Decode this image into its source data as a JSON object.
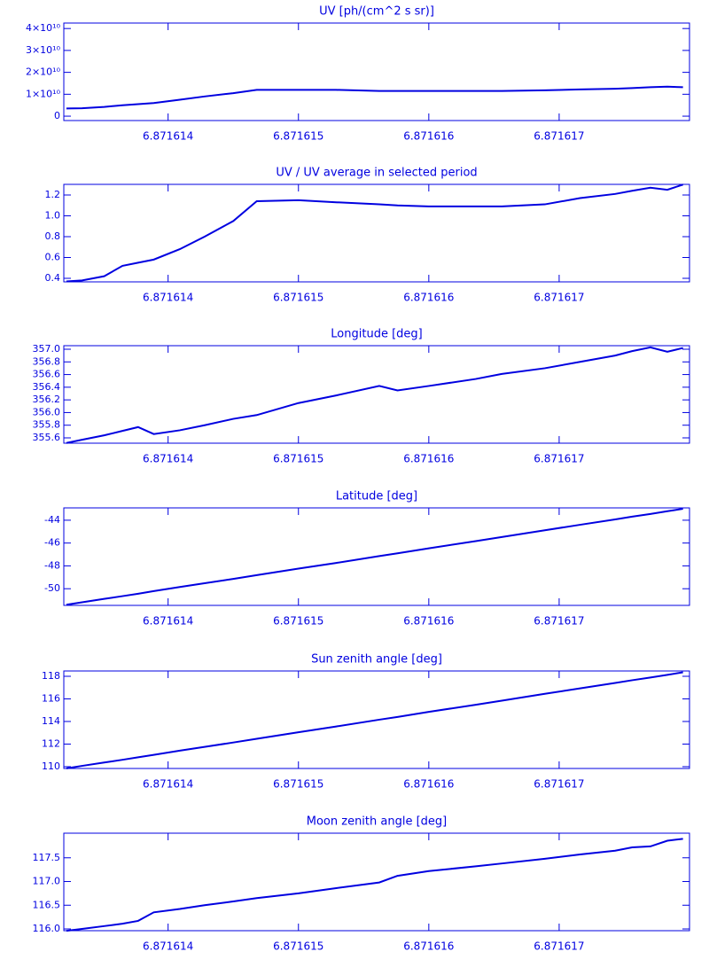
{
  "chart_data": [
    {
      "type": "line",
      "title": "UV [ph/(cm^2 s sr)]",
      "color": "#0000e0",
      "x": [
        6.87161322,
        6.87161334,
        6.87161351,
        6.87161365,
        6.87161377,
        6.87161389,
        6.87161409,
        6.87161428,
        6.8716145,
        6.87161468,
        6.871615,
        6.87161529,
        6.87161562,
        6.87161576,
        6.871616,
        6.87161636,
        6.87161656,
        6.87161689,
        6.87161716,
        6.87161743,
        6.87161756,
        6.8716177,
        6.87161783,
        6.87161795
      ],
      "values": [
        3500000000.0,
        3600000000.0,
        4200000000.0,
        5000000000.0,
        5500000000.0,
        6000000000.0,
        7500000000.0,
        9000000000.0,
        10500000000.0,
        12000000000.0,
        12000000000.0,
        12000000000.0,
        11500000000.0,
        11500000000.0,
        11500000000.0,
        11500000000.0,
        11500000000.0,
        11800000000.0,
        12200000000.0,
        12500000000.0,
        12800000000.0,
        13200000000.0,
        13500000000.0,
        13200000000.0
      ],
      "xlim": [
        6.8716132,
        6.871618
      ],
      "xticks": [
        6.871614,
        6.871615,
        6.871616,
        6.871617
      ],
      "ylim": [
        -2000000000.0,
        42500000000.0
      ],
      "yticks": [
        0,
        {
          "value": 10000000000.0,
          "label": "1×10¹⁰"
        },
        {
          "value": 20000000000.0,
          "label": "2×10¹⁰"
        },
        {
          "value": 30000000000.0,
          "label": "3×10¹⁰"
        },
        {
          "value": 40000000000.0,
          "label": "4×10¹⁰"
        }
      ]
    },
    {
      "type": "line",
      "title": "UV / UV average in selected period",
      "color": "#0000e0",
      "x": [
        6.87161322,
        6.87161334,
        6.87161351,
        6.87161365,
        6.87161377,
        6.87161389,
        6.87161409,
        6.87161428,
        6.8716145,
        6.87161468,
        6.871615,
        6.87161529,
        6.87161562,
        6.87161576,
        6.871616,
        6.87161636,
        6.87161656,
        6.87161689,
        6.87161716,
        6.87161743,
        6.87161756,
        6.8716177,
        6.87161783,
        6.87161795
      ],
      "values": [
        0.37,
        0.38,
        0.42,
        0.52,
        0.55,
        0.58,
        0.68,
        0.8,
        0.95,
        1.14,
        1.15,
        1.13,
        1.11,
        1.1,
        1.09,
        1.09,
        1.09,
        1.11,
        1.17,
        1.21,
        1.24,
        1.27,
        1.25,
        1.3
      ],
      "xlim": [
        6.8716132,
        6.871618
      ],
      "xticks": [
        6.871614,
        6.871615,
        6.871616,
        6.871617
      ],
      "ylim": [
        0.366,
        1.302
      ],
      "yticks": [
        0.4,
        0.6,
        0.8,
        {
          "value": 1.0,
          "label": "1.0"
        },
        1.2
      ]
    },
    {
      "type": "line",
      "title": "Longitude [deg]",
      "color": "#0000e0",
      "x": [
        6.87161322,
        6.87161334,
        6.87161351,
        6.87161365,
        6.87161377,
        6.87161389,
        6.87161409,
        6.87161428,
        6.8716145,
        6.87161468,
        6.871615,
        6.87161529,
        6.87161562,
        6.87161576,
        6.871616,
        6.87161636,
        6.87161656,
        6.87161689,
        6.87161716,
        6.87161743,
        6.87161756,
        6.8716177,
        6.87161783,
        6.87161795
      ],
      "values": [
        355.52,
        355.57,
        355.64,
        355.71,
        355.77,
        355.66,
        355.72,
        355.8,
        355.9,
        355.96,
        356.15,
        356.27,
        356.42,
        356.35,
        356.42,
        356.53,
        356.61,
        356.7,
        356.8,
        356.9,
        356.97,
        357.03,
        356.96,
        357.02
      ],
      "xlim": [
        6.8716132,
        6.871618
      ],
      "xticks": [
        6.871614,
        6.871615,
        6.871616,
        6.871617
      ],
      "ylim": [
        355.516,
        357.056
      ],
      "yticks": [
        355.6,
        355.8,
        {
          "value": 356.0,
          "label": "356.0"
        },
        356.2,
        356.4,
        356.6,
        356.8,
        {
          "value": 357.0,
          "label": "357.0"
        }
      ]
    },
    {
      "type": "line",
      "title": "Latitude [deg]",
      "color": "#0000e0",
      "x": [
        6.87161322,
        6.87161334,
        6.87161351,
        6.87161365,
        6.87161377,
        6.87161389,
        6.87161409,
        6.87161428,
        6.8716145,
        6.87161468,
        6.871615,
        6.87161529,
        6.87161562,
        6.87161576,
        6.871616,
        6.87161636,
        6.87161656,
        6.87161689,
        6.87161716,
        6.87161743,
        6.87161756,
        6.8716177,
        6.87161783,
        6.87161795
      ],
      "values": [
        -51.4,
        -51.19,
        -50.89,
        -50.65,
        -50.44,
        -50.21,
        -49.85,
        -49.52,
        -49.14,
        -48.81,
        -48.24,
        -47.74,
        -47.14,
        -46.9,
        -46.46,
        -45.83,
        -45.47,
        -44.88,
        -44.4,
        -43.93,
        -43.69,
        -43.45,
        -43.21,
        -43.0
      ],
      "xlim": [
        6.8716132,
        6.871618
      ],
      "xticks": [
        6.871614,
        6.871615,
        6.871616,
        6.871617
      ],
      "ylim": [
        -51.46,
        -42.92
      ],
      "yticks": [
        -50,
        -48,
        -46,
        -44
      ]
    },
    {
      "type": "line",
      "title": "Sun zenith angle [deg]",
      "color": "#0000e0",
      "x": [
        6.87161322,
        6.87161334,
        6.87161351,
        6.87161365,
        6.87161377,
        6.87161389,
        6.87161409,
        6.87161428,
        6.8716145,
        6.87161468,
        6.871615,
        6.87161529,
        6.87161562,
        6.87161576,
        6.871616,
        6.87161636,
        6.87161656,
        6.87161689,
        6.87161716,
        6.87161743,
        6.87161756,
        6.8716177,
        6.87161783,
        6.87161795
      ],
      "values": [
        109.85,
        110.07,
        110.37,
        110.61,
        110.83,
        111.05,
        111.42,
        111.75,
        112.14,
        112.47,
        113.05,
        113.56,
        114.16,
        114.4,
        114.85,
        115.48,
        115.84,
        116.45,
        116.93,
        117.41,
        117.65,
        117.89,
        118.13,
        118.35
      ],
      "xlim": [
        6.8716132,
        6.871618
      ],
      "xticks": [
        6.871614,
        6.871615,
        6.871616,
        6.871617
      ],
      "ylim": [
        109.84,
        118.47
      ],
      "yticks": [
        110,
        112,
        114,
        116,
        118
      ]
    },
    {
      "type": "line",
      "title": "Moon zenith angle [deg]",
      "color": "#0000e0",
      "x": [
        6.87161322,
        6.87161334,
        6.87161351,
        6.87161365,
        6.87161377,
        6.87161389,
        6.87161409,
        6.87161428,
        6.8716145,
        6.87161468,
        6.871615,
        6.87161529,
        6.87161562,
        6.87161576,
        6.871616,
        6.87161636,
        6.87161656,
        6.87161689,
        6.87161716,
        6.87161743,
        6.87161756,
        6.8716177,
        6.87161783,
        6.87161795
      ],
      "values": [
        115.96,
        116.0,
        116.06,
        116.11,
        116.17,
        116.35,
        116.42,
        116.5,
        116.58,
        116.65,
        116.75,
        116.86,
        116.98,
        117.12,
        117.22,
        117.32,
        117.38,
        117.48,
        117.57,
        117.65,
        117.72,
        117.74,
        117.86,
        117.9
      ],
      "xlim": [
        6.8716132,
        6.871618
      ],
      "xticks": [
        6.871614,
        6.871615,
        6.871616,
        6.871617
      ],
      "ylim": [
        115.963,
        118.019
      ],
      "yticks": [
        {
          "value": 116.0,
          "label": "116.0"
        },
        116.5,
        {
          "value": 117.0,
          "label": "117.0"
        },
        117.5
      ]
    }
  ]
}
